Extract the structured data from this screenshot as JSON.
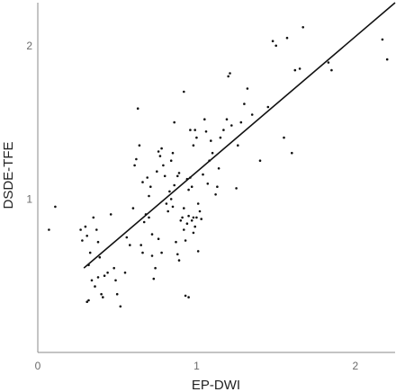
{
  "chart_data": {
    "type": "scatter",
    "title": "",
    "xlabel": "EP-DWI",
    "ylabel": "DSDE-TFE",
    "xlim": [
      0,
      2.25
    ],
    "ylim": [
      0,
      2.28
    ],
    "xticks": [
      0,
      1,
      2
    ],
    "yticks": [
      1,
      2
    ],
    "grid": false,
    "colors": {
      "points": "#111111",
      "line": "#111111",
      "axis": "#8a8a8a"
    },
    "points": [
      [
        0.07,
        0.8
      ],
      [
        0.11,
        0.95
      ],
      [
        0.27,
        0.8
      ],
      [
        0.28,
        0.73
      ],
      [
        0.31,
        0.76
      ],
      [
        0.3,
        0.82
      ],
      [
        0.33,
        0.65
      ],
      [
        0.35,
        0.88
      ],
      [
        0.37,
        0.8
      ],
      [
        0.38,
        0.72
      ],
      [
        0.39,
        0.62
      ],
      [
        0.32,
        0.57
      ],
      [
        0.34,
        0.47
      ],
      [
        0.36,
        0.43
      ],
      [
        0.38,
        0.49
      ],
      [
        0.4,
        0.38
      ],
      [
        0.41,
        0.36
      ],
      [
        0.42,
        0.5
      ],
      [
        0.44,
        0.52
      ],
      [
        0.46,
        0.9
      ],
      [
        0.48,
        0.55
      ],
      [
        0.49,
        0.47
      ],
      [
        0.5,
        0.38
      ],
      [
        0.52,
        0.3
      ],
      [
        0.31,
        0.33
      ],
      [
        0.32,
        0.34
      ],
      [
        0.55,
        0.52
      ],
      [
        0.56,
        0.75
      ],
      [
        0.58,
        0.7
      ],
      [
        0.6,
        0.94
      ],
      [
        0.61,
        1.22
      ],
      [
        0.62,
        1.26
      ],
      [
        0.64,
        1.35
      ],
      [
        0.63,
        1.59
      ],
      [
        0.65,
        0.7
      ],
      [
        0.66,
        0.65
      ],
      [
        0.67,
        0.85
      ],
      [
        0.68,
        0.9
      ],
      [
        0.7,
        0.88
      ],
      [
        0.7,
        1.02
      ],
      [
        0.71,
        1.08
      ],
      [
        0.72,
        0.77
      ],
      [
        0.72,
        0.63
      ],
      [
        0.73,
        0.48
      ],
      [
        0.74,
        0.55
      ],
      [
        0.75,
        1.18
      ],
      [
        0.76,
        1.31
      ],
      [
        0.77,
        1.28
      ],
      [
        0.78,
        1.33
      ],
      [
        0.79,
        1.22
      ],
      [
        0.8,
        1.15
      ],
      [
        0.81,
        0.97
      ],
      [
        0.82,
        0.92
      ],
      [
        0.83,
        1.05
      ],
      [
        0.84,
        1.0
      ],
      [
        0.85,
        0.95
      ],
      [
        0.86,
        1.09
      ],
      [
        0.87,
        0.72
      ],
      [
        0.88,
        0.64
      ],
      [
        0.89,
        0.6
      ],
      [
        0.9,
        0.86
      ],
      [
        0.91,
        0.88
      ],
      [
        0.92,
        0.8
      ],
      [
        0.93,
        0.73
      ],
      [
        0.94,
        0.84
      ],
      [
        0.95,
        0.89
      ],
      [
        0.96,
        1.14
      ],
      [
        0.97,
        1.08
      ],
      [
        0.98,
        1.35
      ],
      [
        0.99,
        1.45
      ],
      [
        1.0,
        1.4
      ],
      [
        1.01,
        0.97
      ],
      [
        1.02,
        0.92
      ],
      [
        1.03,
        0.87
      ],
      [
        1.04,
        1.16
      ],
      [
        1.05,
        1.52
      ],
      [
        1.06,
        1.44
      ],
      [
        1.07,
        1.1
      ],
      [
        1.08,
        1.25
      ],
      [
        1.09,
        1.38
      ],
      [
        1.1,
        1.3
      ],
      [
        1.12,
        1.03
      ],
      [
        1.13,
        1.08
      ],
      [
        1.14,
        1.2
      ],
      [
        1.15,
        1.4
      ],
      [
        1.17,
        1.45
      ],
      [
        1.19,
        1.52
      ],
      [
        1.2,
        1.8
      ],
      [
        1.21,
        1.82
      ],
      [
        1.22,
        1.48
      ],
      [
        1.25,
        1.07
      ],
      [
        1.26,
        1.35
      ],
      [
        1.28,
        1.5
      ],
      [
        1.3,
        1.62
      ],
      [
        1.32,
        1.72
      ],
      [
        1.35,
        1.55
      ],
      [
        1.4,
        1.25
      ],
      [
        1.45,
        1.6
      ],
      [
        1.48,
        2.03
      ],
      [
        1.5,
        2.0
      ],
      [
        1.55,
        1.4
      ],
      [
        1.57,
        2.05
      ],
      [
        1.6,
        1.3
      ],
      [
        1.62,
        1.84
      ],
      [
        1.65,
        1.85
      ],
      [
        1.67,
        2.12
      ],
      [
        1.83,
        1.89
      ],
      [
        1.85,
        1.84
      ],
      [
        2.17,
        2.04
      ],
      [
        2.2,
        1.91
      ],
      [
        0.88,
        1.15
      ],
      [
        0.89,
        1.17
      ],
      [
        0.92,
        0.94
      ],
      [
        0.94,
        1.13
      ],
      [
        0.95,
        1.06
      ],
      [
        0.97,
        0.86
      ],
      [
        0.98,
        0.78
      ],
      [
        0.99,
        0.82
      ],
      [
        1.0,
        0.88
      ],
      [
        1.01,
        0.66
      ],
      [
        0.93,
        0.37
      ],
      [
        0.95,
        0.36
      ],
      [
        0.98,
        0.88
      ],
      [
        0.96,
        1.45
      ],
      [
        0.92,
        1.7
      ],
      [
        0.84,
        1.25
      ],
      [
        0.85,
        1.3
      ],
      [
        0.86,
        1.5
      ],
      [
        0.76,
        0.74
      ],
      [
        0.78,
        0.65
      ],
      [
        0.66,
        1.11
      ],
      [
        0.69,
        1.14
      ]
    ],
    "fit_line": [
      [
        0.29,
        0.55
      ],
      [
        2.25,
        2.28
      ]
    ]
  }
}
